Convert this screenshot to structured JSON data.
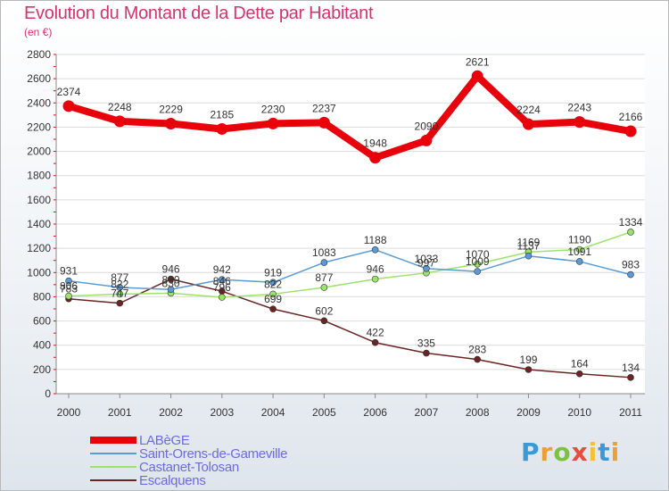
{
  "title": "Evolution du Montant de la Dette par Habitant",
  "subtitle": "(en €)",
  "brand": {
    "letters": [
      "P",
      "r",
      "o",
      "x",
      "i",
      "t",
      "i"
    ],
    "colors": [
      "#3a9ad9",
      "#e8a13a",
      "#7cc242",
      "#e84c3d",
      "#f2c230",
      "#3a9ad9",
      "#e8a13a"
    ]
  },
  "chart_data": {
    "type": "line",
    "title": "Evolution du Montant de la Dette par Habitant",
    "ylabel": "(en €)",
    "xlabel": "",
    "x": [
      "2000",
      "2001",
      "2002",
      "2003",
      "2004",
      "2005",
      "2006",
      "2007",
      "2008",
      "2009",
      "2010",
      "2011"
    ],
    "ylim": [
      0,
      2800
    ],
    "yticks": [
      "0",
      "200",
      "400",
      "600",
      "800",
      "1000",
      "1200",
      "1400",
      "1600",
      "1800",
      "2000",
      "2200",
      "2400",
      "2600",
      "2800"
    ],
    "grid": "horizontal",
    "legend_position": "bottom-left",
    "series": [
      {
        "name": "LABèGE",
        "color": "#e8000b",
        "values": [
          2374,
          2248,
          2229,
          2185,
          2230,
          2237,
          1948,
          2090,
          2621,
          2224,
          2243,
          2166
        ],
        "labels": [
          "2374",
          "2248",
          "2229",
          "2185",
          "2230",
          "2237",
          "1948",
          "2090",
          "2621",
          "2224",
          "2243",
          "2166"
        ]
      },
      {
        "name": "Saint-Orens-de-Gameville",
        "color": "#5b9bd5",
        "values": [
          931,
          877,
          860,
          942,
          919,
          1083,
          1188,
          1033,
          1009,
          1137,
          1091,
          983
        ],
        "labels": [
          "931",
          "877",
          "860",
          "942",
          "919",
          "1083",
          "1188",
          "1033",
          "1009",
          "1137",
          "1091",
          "983"
        ]
      },
      {
        "name": "Castanet-Tolosan",
        "color": "#9be36a",
        "values": [
          806,
          822,
          830,
          796,
          822,
          877,
          946,
          997,
          1070,
          1169,
          1190,
          1334
        ],
        "labels": [
          "806",
          "822",
          "830",
          "796",
          "822",
          "877",
          "946",
          "997",
          "1070",
          "1169",
          "1190",
          "1334"
        ]
      },
      {
        "name": "Escalquens",
        "color": "#6b2424",
        "values": [
          783,
          747,
          946,
          846,
          699,
          602,
          422,
          335,
          283,
          199,
          164,
          134
        ],
        "labels": [
          "783",
          "747",
          "946",
          "846",
          "699",
          "602",
          "422",
          "335",
          "283",
          "199",
          "164",
          "134"
        ]
      }
    ]
  }
}
